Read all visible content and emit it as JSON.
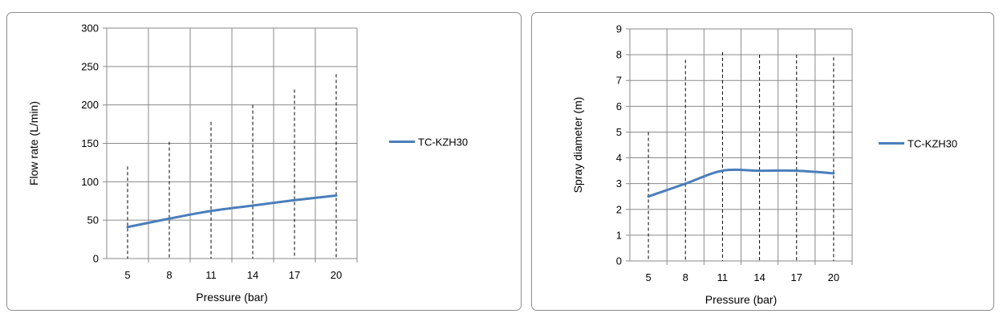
{
  "chart_data": [
    {
      "type": "line",
      "title": "",
      "xlabel": "Pressure (bar)",
      "ylabel": "Flow rate (L/min)",
      "categories": [
        "5",
        "8",
        "11",
        "14",
        "17",
        "20"
      ],
      "ylim": [
        0,
        300
      ],
      "yticks": [
        0,
        50,
        100,
        150,
        200,
        250,
        300
      ],
      "series": [
        {
          "name": "TC-KZH30",
          "values": [
            41,
            52,
            62,
            69,
            76,
            82
          ],
          "color": "#4a7ebb"
        }
      ],
      "dashed_markers": [
        120,
        152,
        178,
        200,
        220,
        240
      ],
      "grid": true,
      "legend": "right"
    },
    {
      "type": "line",
      "title": "",
      "xlabel": "Pressure (bar)",
      "ylabel": "Spray diameter (m)",
      "categories": [
        "5",
        "8",
        "11",
        "14",
        "17",
        "20"
      ],
      "ylim": [
        0,
        9
      ],
      "yticks": [
        0,
        1,
        2,
        3,
        4,
        5,
        6,
        7,
        8,
        9
      ],
      "series": [
        {
          "name": "TC-KZH30",
          "values": [
            2.5,
            3.0,
            3.5,
            3.5,
            3.5,
            3.4
          ],
          "color": "#4a7ebb"
        }
      ],
      "dashed_markers": [
        5.0,
        7.8,
        8.1,
        8.0,
        8.0,
        7.9
      ],
      "grid": true,
      "legend": "right"
    }
  ]
}
